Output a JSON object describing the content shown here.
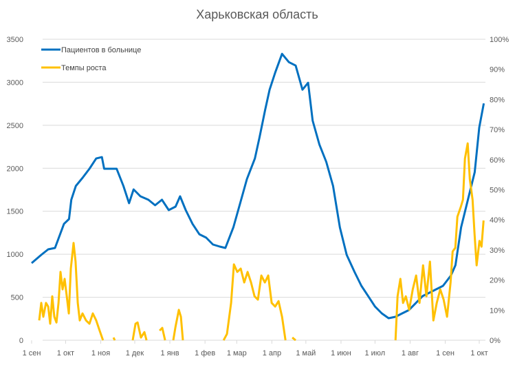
{
  "chart_data": {
    "type": "line",
    "title": "Харьковская область",
    "xlabel": "",
    "ylabel": "",
    "x_unit": "days since 1 сен",
    "x_range": [
      0,
      400
    ],
    "x_ticks": [
      {
        "day": 0,
        "label": "1 сен"
      },
      {
        "day": 30,
        "label": "1 окт"
      },
      {
        "day": 61,
        "label": "1 ноя"
      },
      {
        "day": 91,
        "label": "1 дек"
      },
      {
        "day": 122,
        "label": "1 янв"
      },
      {
        "day": 153,
        "label": "1 фев"
      },
      {
        "day": 181,
        "label": "1 мар"
      },
      {
        "day": 212,
        "label": "1 апр"
      },
      {
        "day": 242,
        "label": "1 май"
      },
      {
        "day": 273,
        "label": "1 июн"
      },
      {
        "day": 303,
        "label": "1 июл"
      },
      {
        "day": 334,
        "label": "1 авг"
      },
      {
        "day": 365,
        "label": "1 сен"
      },
      {
        "day": 395,
        "label": "1 окт"
      }
    ],
    "ylim": [
      0,
      3500
    ],
    "y_ticks": [
      "0",
      "500",
      "1000",
      "1500",
      "2000",
      "2500",
      "3000",
      "3500"
    ],
    "y2lim": [
      0,
      100
    ],
    "y2_ticks": [
      "0%",
      "10%",
      "20%",
      "30%",
      "40%",
      "50%",
      "60%",
      "70%",
      "80%",
      "90%",
      "100%"
    ],
    "grid": true,
    "legend_position": "top-left",
    "series": [
      {
        "name": "Пациентов в больнице",
        "color": "#0070C0",
        "axis": "left",
        "points": [
          [
            0,
            897
          ],
          [
            8.5,
            993
          ],
          [
            14.6,
            1057
          ],
          [
            20.6,
            1073
          ],
          [
            28.5,
            1353
          ],
          [
            33,
            1410
          ],
          [
            35,
            1634
          ],
          [
            39,
            1794
          ],
          [
            45,
            1890
          ],
          [
            51,
            1994
          ],
          [
            57,
            2114
          ],
          [
            62,
            2130
          ],
          [
            64,
            1994
          ],
          [
            69,
            1994
          ],
          [
            75,
            1994
          ],
          [
            81,
            1794
          ],
          [
            86,
            1594
          ],
          [
            90,
            1754
          ],
          [
            96,
            1674
          ],
          [
            103,
            1634
          ],
          [
            109,
            1570
          ],
          [
            115,
            1634
          ],
          [
            121,
            1514
          ],
          [
            127,
            1554
          ],
          [
            131,
            1674
          ],
          [
            136,
            1514
          ],
          [
            142,
            1353
          ],
          [
            148,
            1233
          ],
          [
            154,
            1193
          ],
          [
            160,
            1113
          ],
          [
            166,
            1089
          ],
          [
            171,
            1073
          ],
          [
            178,
            1313
          ],
          [
            184,
            1594
          ],
          [
            190,
            1874
          ],
          [
            197,
            2114
          ],
          [
            201,
            2354
          ],
          [
            206,
            2674
          ],
          [
            210,
            2914
          ],
          [
            215,
            3114
          ],
          [
            221,
            3330
          ],
          [
            227,
            3234
          ],
          [
            233,
            3194
          ],
          [
            239,
            2914
          ],
          [
            244,
            2994
          ],
          [
            248,
            2554
          ],
          [
            254,
            2274
          ],
          [
            260,
            2074
          ],
          [
            266,
            1794
          ],
          [
            272,
            1313
          ],
          [
            278,
            993
          ],
          [
            285,
            793
          ],
          [
            291,
            633
          ],
          [
            297,
            513
          ],
          [
            303,
            392
          ],
          [
            309,
            312
          ],
          [
            315,
            256
          ],
          [
            321,
            272
          ],
          [
            327,
            312
          ],
          [
            333,
            352
          ],
          [
            339,
            432
          ],
          [
            345,
            513
          ],
          [
            351,
            553
          ],
          [
            357,
            593
          ],
          [
            363,
            633
          ],
          [
            370,
            753
          ],
          [
            374,
            873
          ],
          [
            379,
            1313
          ],
          [
            385,
            1634
          ],
          [
            391,
            1954
          ],
          [
            395,
            2474
          ],
          [
            399,
            2754
          ]
        ]
      },
      {
        "name": "Темпы роста",
        "color": "#FFC000",
        "axis": "right",
        "segments": [
          [
            [
              6.7,
              6.6
            ],
            [
              8.5,
              12.4
            ],
            [
              10.3,
              7.8
            ],
            [
              12.7,
              12.4
            ],
            [
              14.6,
              11.2
            ],
            [
              16.4,
              5.5
            ],
            [
              18.2,
              14.6
            ],
            [
              20,
              7.8
            ],
            [
              21.9,
              5.9
            ],
            [
              23.7,
              12.4
            ],
            [
              25.5,
              22.7
            ],
            [
              27.3,
              16.9
            ],
            [
              29.1,
              20.4
            ],
            [
              31,
              14.6
            ],
            [
              32.8,
              8.9
            ],
            [
              34.6,
              23.8
            ],
            [
              37,
              32.3
            ],
            [
              38.8,
              26.1
            ],
            [
              40.7,
              12.4
            ],
            [
              42.5,
              6.6
            ],
            [
              44.9,
              8.9
            ],
            [
              48,
              6.6
            ],
            [
              51,
              5.5
            ],
            [
              54,
              8.9
            ],
            [
              57,
              6.6
            ],
            [
              60,
              3.2
            ],
            [
              63,
              0
            ]
          ],
          [
            [
              72.2,
              0.9
            ],
            [
              73.4,
              0
            ]
          ],
          [
            [
              89.2,
              0
            ],
            [
              91.7,
              5.5
            ],
            [
              93.5,
              5.9
            ],
            [
              96.5,
              0.9
            ],
            [
              99.5,
              2.7
            ],
            [
              101.4,
              0
            ]
          ],
          [
            [
              112.9,
              3.2
            ],
            [
              115.3,
              4.1
            ],
            [
              117.8,
              0
            ]
          ],
          [
            [
              125,
              0
            ],
            [
              126.9,
              4.3
            ],
            [
              129.9,
              10.1
            ],
            [
              131.7,
              7.8
            ],
            [
              133.5,
              0
            ]
          ],
          [
            [
              169.4,
              0
            ],
            [
              172.4,
              2.1
            ],
            [
              176,
              12.4
            ],
            [
              178.5,
              25.2
            ],
            [
              181.5,
              22.7
            ],
            [
              184.5,
              23.8
            ],
            [
              187.6,
              19.2
            ],
            [
              190.6,
              22.7
            ],
            [
              193.6,
              19.2
            ],
            [
              196.7,
              14.6
            ],
            [
              199.7,
              13.5
            ],
            [
              202.7,
              21.5
            ],
            [
              205.8,
              19.2
            ],
            [
              208.8,
              21.5
            ],
            [
              211.8,
              12.4
            ],
            [
              214.9,
              11.2
            ],
            [
              217.9,
              13
            ],
            [
              221,
              7.8
            ],
            [
              224,
              0
            ]
          ],
          [
            [
              230,
              0.9
            ],
            [
              233,
              0
            ]
          ],
          [
            [
              321.1,
              0
            ],
            [
              322.9,
              14.6
            ],
            [
              325.4,
              20.4
            ],
            [
              327.8,
              12.4
            ],
            [
              330.2,
              14.6
            ],
            [
              333.2,
              10.1
            ],
            [
              336.3,
              16.9
            ],
            [
              339.3,
              21.5
            ],
            [
              342.3,
              12.4
            ],
            [
              345.4,
              24.9
            ],
            [
              348.4,
              14.6
            ],
            [
              351.5,
              26.1
            ],
            [
              354.5,
              6.6
            ],
            [
              357.5,
              12.4
            ],
            [
              360.6,
              16.9
            ],
            [
              363.6,
              13.5
            ],
            [
              366.6,
              7.8
            ],
            [
              369.7,
              19.2
            ],
            [
              371.5,
              29.5
            ],
            [
              373.9,
              30.7
            ],
            [
              375.7,
              41
            ],
            [
              378.8,
              44.4
            ],
            [
              380.6,
              46.7
            ],
            [
              382.4,
              60.4
            ],
            [
              384.8,
              65.4
            ],
            [
              386.7,
              53.5
            ],
            [
              389.1,
              46.7
            ],
            [
              390.9,
              35.2
            ],
            [
              392.7,
              24.9
            ],
            [
              395.2,
              33
            ],
            [
              397,
              31.1
            ],
            [
              398.8,
              39.8
            ]
          ]
        ]
      }
    ]
  }
}
